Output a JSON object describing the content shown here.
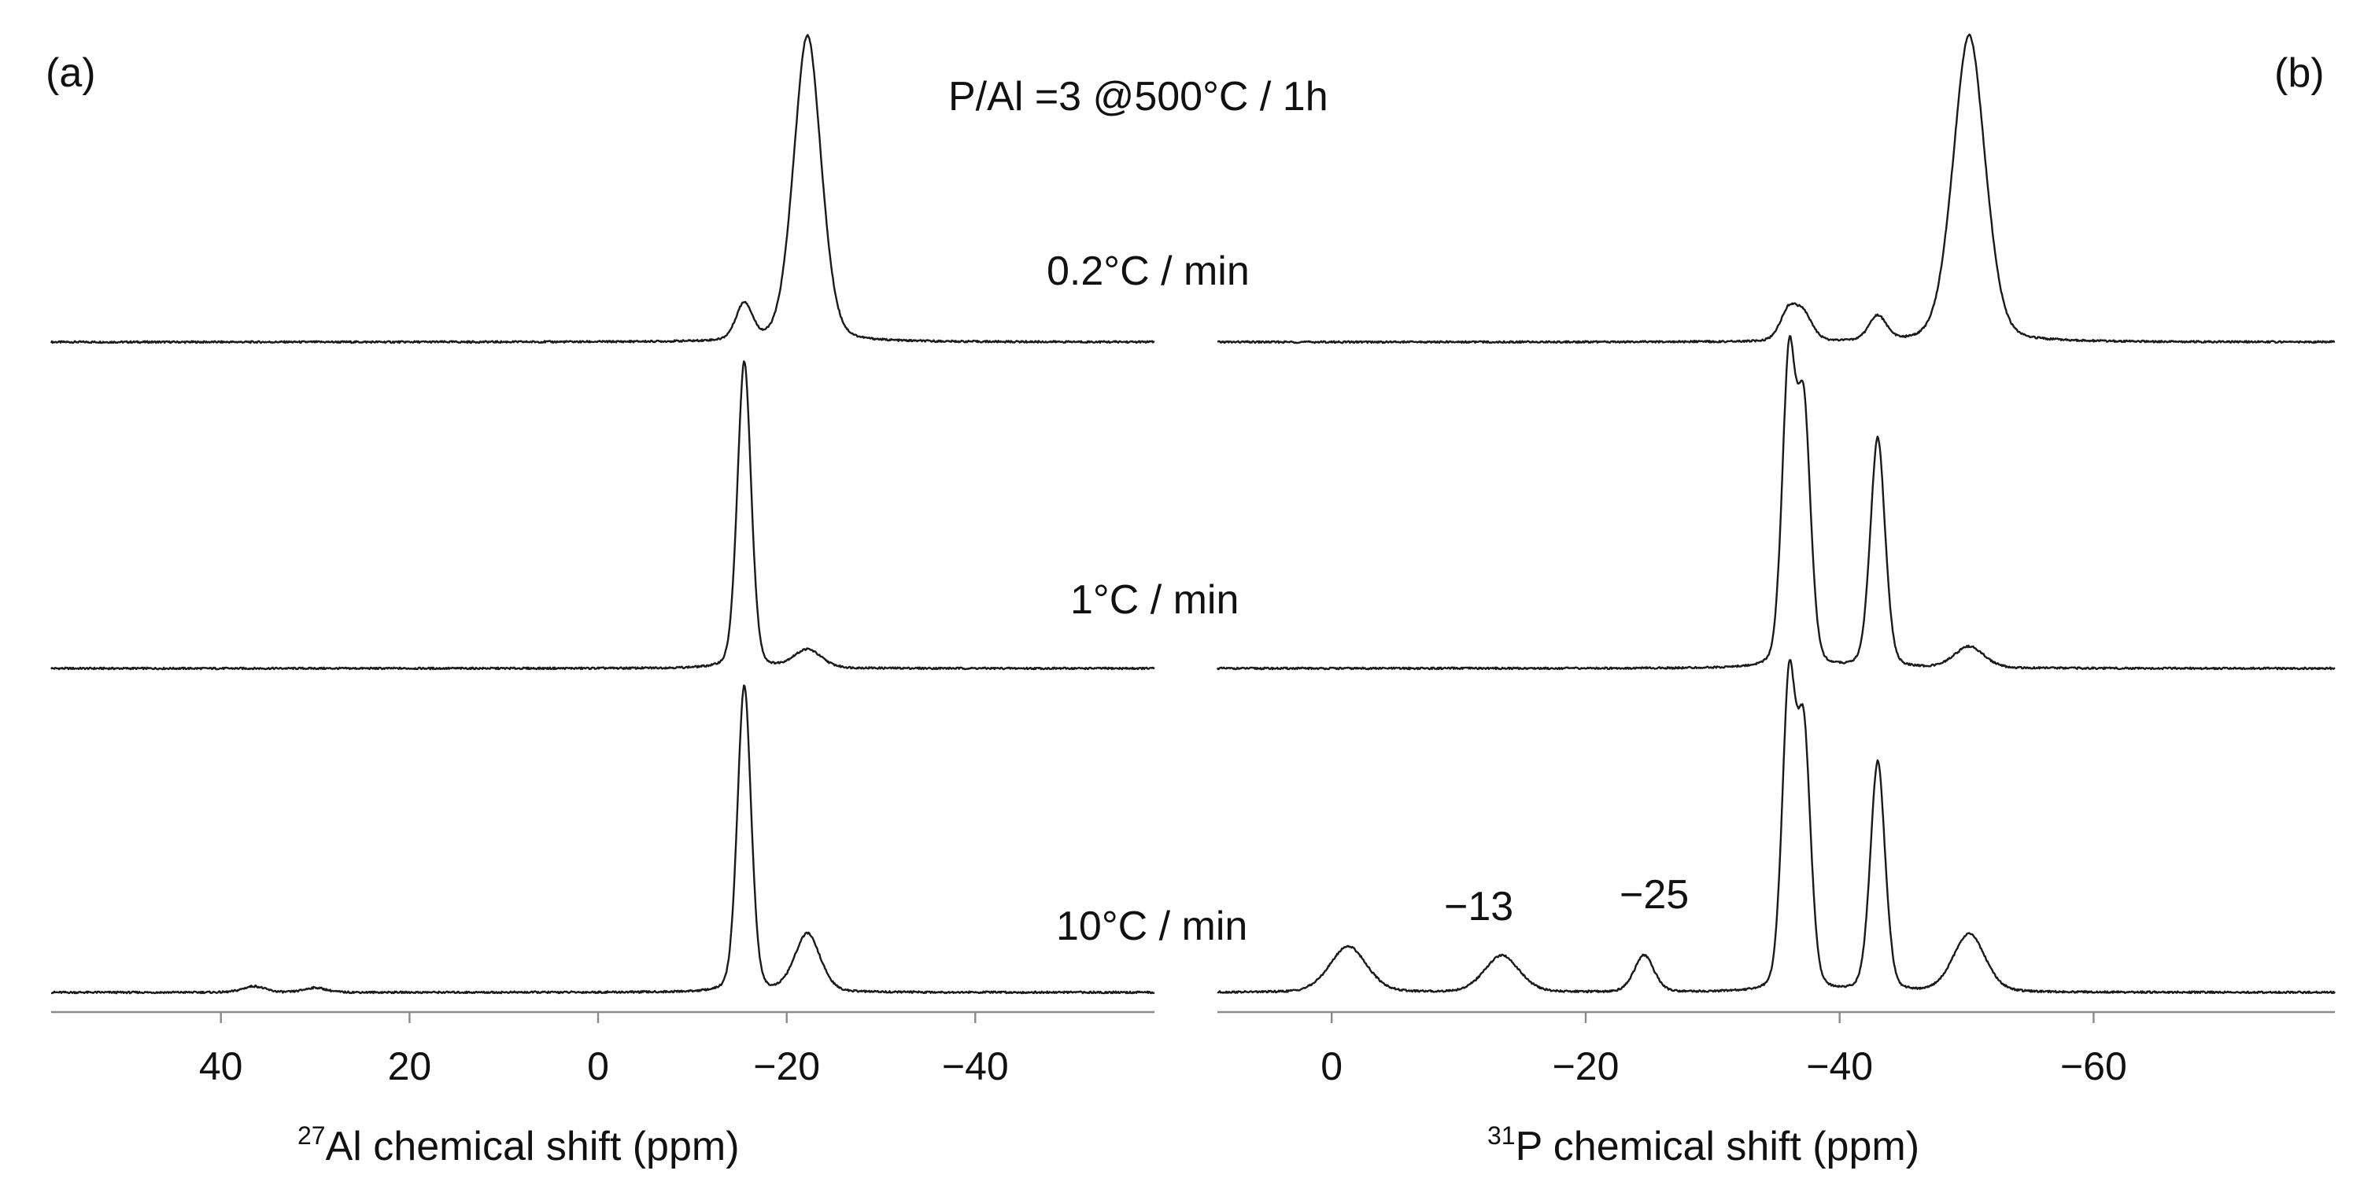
{
  "chart_data": {
    "type": "line",
    "title": "P/Al =3 @500°C / 1h",
    "panels": [
      {
        "label": "(a)",
        "nucleus_sup": "27",
        "xlabel_text": "Al chemical shift (ppm)",
        "xlim": [
          58,
          -59
        ],
        "xticks": [
          {
            "value": 40,
            "label": "40"
          },
          {
            "value": 20,
            "label": "20"
          },
          {
            "value": 0,
            "label": "0"
          },
          {
            "value": -20,
            "label": "−20"
          },
          {
            "value": -40,
            "label": "−40"
          }
        ],
        "series": [
          {
            "name": "0.2°C / min",
            "peaks": [
              {
                "center": -15.5,
                "width": 0.9,
                "height": 0.12
              },
              {
                "center": -22.2,
                "width": 1.5,
                "height": 1.0
              }
            ]
          },
          {
            "name": "1°C / min",
            "peaks": [
              {
                "center": -15.5,
                "width": 0.75,
                "height": 1.0
              },
              {
                "center": -22.2,
                "width": 1.5,
                "height": 0.06
              }
            ]
          },
          {
            "name": "10°C / min",
            "peaks": [
              {
                "center": 36.5,
                "width": 1.2,
                "height": 0.02
              },
              {
                "center": 30,
                "width": 1.2,
                "height": 0.015
              },
              {
                "center": -15.5,
                "width": 0.75,
                "height": 1.0
              },
              {
                "center": -22.2,
                "width": 1.4,
                "height": 0.19
              }
            ]
          }
        ]
      },
      {
        "label": "(b)",
        "nucleus_sup": "31",
        "xlabel_text": "P chemical shift (ppm)",
        "xlim": [
          9,
          -79
        ],
        "xticks": [
          {
            "value": 0,
            "label": "0"
          },
          {
            "value": -20,
            "label": "−20"
          },
          {
            "value": -40,
            "label": "−40"
          },
          {
            "value": -60,
            "label": "−60"
          }
        ],
        "series": [
          {
            "name": "0.2°C / min",
            "peaks": [
              {
                "center": -36.0,
                "width": 0.7,
                "height": 0.1
              },
              {
                "center": -37.2,
                "width": 0.7,
                "height": 0.08
              },
              {
                "center": -43.0,
                "width": 0.7,
                "height": 0.08
              },
              {
                "center": -50.2,
                "width": 1.3,
                "height": 1.0
              }
            ]
          },
          {
            "name": "1°C / min",
            "peaks": [
              {
                "center": -36.0,
                "width": 0.55,
                "height": 0.98
              },
              {
                "center": -37.2,
                "width": 0.55,
                "height": 0.8
              },
              {
                "center": -43.0,
                "width": 0.6,
                "height": 0.75
              },
              {
                "center": -50.2,
                "width": 1.2,
                "height": 0.07
              }
            ]
          },
          {
            "name": "10°C / min",
            "peaks": [
              {
                "center": -1.3,
                "width": 1.5,
                "height": 0.15
              },
              {
                "center": -13.4,
                "width": 1.4,
                "height": 0.12
              },
              {
                "center": -24.6,
                "width": 0.8,
                "height": 0.12
              },
              {
                "center": -36.0,
                "width": 0.55,
                "height": 0.98
              },
              {
                "center": -37.2,
                "width": 0.55,
                "height": 0.8
              },
              {
                "center": -43.0,
                "width": 0.6,
                "height": 0.75
              },
              {
                "center": -50.2,
                "width": 1.3,
                "height": 0.19
              }
            ],
            "annotations": [
              {
                "text": "−13",
                "x": -13
              },
              {
                "text": "−25",
                "x": -25
              }
            ]
          }
        ]
      }
    ]
  }
}
